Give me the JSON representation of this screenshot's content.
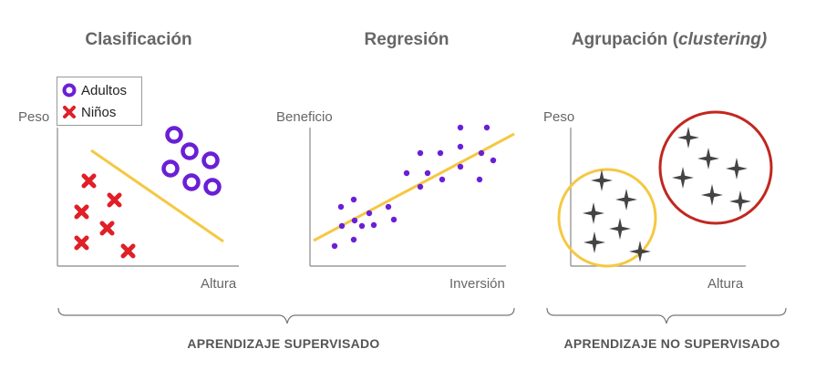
{
  "panels": {
    "classification": {
      "title": "Clasificación",
      "y_label": "Peso",
      "x_label": "Altura",
      "legend": [
        {
          "label": "Adultos",
          "icon": "ring-icon",
          "color": "#6a1fd6"
        },
        {
          "label": "Niños",
          "icon": "cross-icon",
          "color": "#e01f26"
        }
      ]
    },
    "regression": {
      "title": "Regresión",
      "y_label": "Beneficio",
      "x_label": "Inversión"
    },
    "clustering": {
      "title_main": "Agrupación (",
      "title_italic": "clustering)",
      "y_label": "Peso",
      "x_label": "Altura"
    }
  },
  "captions": {
    "supervised": "APRENDIZAJE SUPERVISADO",
    "unsupervised": "APRENDIZAJE NO SUPERVISADO"
  },
  "colors": {
    "adult": "#6a1fd6",
    "child": "#e01f26",
    "line": "#f5c842",
    "point": "#6a1fd6",
    "star": "#444444",
    "cluster_yellow": "#f5c842",
    "cluster_red": "#c0281f",
    "axis": "#888888"
  }
}
